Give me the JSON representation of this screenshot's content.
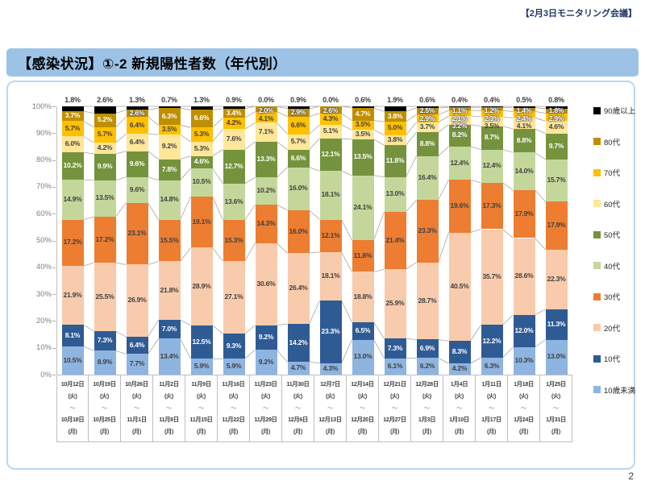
{
  "page": {
    "header_note": "【2月3日モニタリング会議】",
    "title": "【感染状況】①-2 新規陽性者数（年代別）",
    "page_number": "2"
  },
  "chart_data": {
    "type": "bar",
    "stacked": true,
    "percent_stacked": true,
    "title": "【感染状況】①-2 新規陽性者数（年代別）",
    "xlabel": "",
    "ylabel": "",
    "ylim": [
      0,
      100
    ],
    "grid": false,
    "legend_position": "right",
    "label_format": "0.0%",
    "y_ticks": [
      "0%",
      "10%",
      "20%",
      "30%",
      "40%",
      "50%",
      "60%",
      "70%",
      "80%",
      "90%",
      "100%"
    ],
    "category_separator": "～",
    "categories": [
      {
        "start": "10月12日",
        "start_dow": "(火)",
        "end": "10月18日",
        "end_dow": "(月)"
      },
      {
        "start": "10月19日",
        "start_dow": "(火)",
        "end": "10月25日",
        "end_dow": "(月)"
      },
      {
        "start": "10月26日",
        "start_dow": "(火)",
        "end": "11月1日",
        "end_dow": "(月)"
      },
      {
        "start": "11月2日",
        "start_dow": "(火)",
        "end": "11月8日",
        "end_dow": "(月)"
      },
      {
        "start": "11月9日",
        "start_dow": "(火)",
        "end": "11月15日",
        "end_dow": "(月)"
      },
      {
        "start": "11月16日",
        "start_dow": "(火)",
        "end": "11月22日",
        "end_dow": "(月)"
      },
      {
        "start": "11月23日",
        "start_dow": "(火)",
        "end": "11月29日",
        "end_dow": "(月)"
      },
      {
        "start": "11月30日",
        "start_dow": "(火)",
        "end": "12月6日",
        "end_dow": "(月)"
      },
      {
        "start": "12月7日",
        "start_dow": "(火)",
        "end": "12月13日",
        "end_dow": "(月)"
      },
      {
        "start": "12月14日",
        "start_dow": "(火)",
        "end": "12月20日",
        "end_dow": "(月)"
      },
      {
        "start": "12月21日",
        "start_dow": "(火)",
        "end": "12月27日",
        "end_dow": "(月)"
      },
      {
        "start": "12月28日",
        "start_dow": "(火)",
        "end": "1月3日",
        "end_dow": "(月)"
      },
      {
        "start": "1月4日",
        "start_dow": "(火)",
        "end": "1月10日",
        "end_dow": "(月)"
      },
      {
        "start": "1月11日",
        "start_dow": "(火)",
        "end": "1月17日",
        "end_dow": "(月)"
      },
      {
        "start": "1月18日",
        "start_dow": "(火)",
        "end": "1月24日",
        "end_dow": "(月)"
      },
      {
        "start": "1月25日",
        "start_dow": "(火)",
        "end": "1月31日",
        "end_dow": "(月)"
      }
    ],
    "series": [
      {
        "name": "10歳未満",
        "color": "#8EB4E0",
        "label_color": "#404040",
        "values": [
          10.5,
          8.9,
          7.7,
          13.4,
          5.9,
          5.9,
          9.2,
          4.7,
          4.3,
          13.0,
          6.1,
          6.2,
          4.2,
          6.3,
          10.3,
          13.0
        ]
      },
      {
        "name": "10代",
        "color": "#2F5B95",
        "label_color": "#FFFFFF",
        "values": [
          8.1,
          7.3,
          6.4,
          7.0,
          12.5,
          9.3,
          9.2,
          14.2,
          23.3,
          6.5,
          7.3,
          6.9,
          8.3,
          12.2,
          12.0,
          11.3
        ]
      },
      {
        "name": "20代",
        "color": "#F8CBAD",
        "label_color": "#404040",
        "values": [
          21.9,
          25.5,
          26.9,
          21.8,
          28.9,
          27.1,
          30.6,
          26.4,
          18.1,
          18.8,
          25.9,
          28.7,
          40.5,
          35.7,
          28.6,
          22.3
        ]
      },
      {
        "name": "30代",
        "color": "#ED7D31",
        "label_color": "#404040",
        "values": [
          17.2,
          17.2,
          23.1,
          15.5,
          19.1,
          15.3,
          14.3,
          16.0,
          12.1,
          11.8,
          21.4,
          23.3,
          19.6,
          17.3,
          17.9,
          17.9
        ]
      },
      {
        "name": "40代",
        "color": "#C4D79B",
        "label_color": "#404040",
        "values": [
          14.9,
          13.5,
          9.6,
          14.8,
          10.5,
          13.6,
          10.2,
          16.0,
          18.1,
          24.1,
          13.0,
          16.4,
          12.4,
          12.4,
          14.0,
          15.7
        ]
      },
      {
        "name": "50代",
        "color": "#75933D",
        "label_color": "#FFFFFF",
        "values": [
          10.2,
          9.9,
          9.6,
          7.8,
          4.6,
          12.7,
          13.3,
          6.6,
          12.1,
          13.5,
          11.8,
          8.8,
          8.2,
          8.7,
          8.8,
          9.7
        ]
      },
      {
        "name": "60代",
        "color": "#FFE699",
        "label_color": "#404040",
        "values": [
          6.0,
          4.2,
          6.4,
          9.2,
          5.3,
          7.6,
          7.1,
          5.7,
          5.1,
          3.5,
          3.8,
          3.7,
          3.2,
          3.5,
          4.1,
          4.6
        ]
      },
      {
        "name": "70代",
        "color": "#FFC000",
        "label_color": "#404040",
        "values": [
          5.7,
          5.7,
          6.4,
          3.5,
          5.3,
          4.2,
          4.1,
          6.6,
          4.3,
          3.5,
          5.0,
          2.9,
          2.1,
          2.3,
          2.4,
          2.9
        ]
      },
      {
        "name": "80代",
        "color": "#BF8F00",
        "label_color": "#FFFFFF",
        "values": [
          3.7,
          5.2,
          2.6,
          6.3,
          6.6,
          3.4,
          2.0,
          2.9,
          2.6,
          4.7,
          3.8,
          2.5,
          1.1,
          1.2,
          1.4,
          1.8
        ]
      },
      {
        "name": "90歳以上",
        "color": "#000000",
        "label_color": "#404040",
        "values": [
          1.8,
          2.6,
          1.3,
          0.7,
          1.3,
          0.9,
          0.0,
          0.9,
          0.0,
          0.6,
          1.9,
          0.6,
          0.4,
          0.4,
          0.5,
          0.8
        ]
      }
    ],
    "series_line_color": "#A6A6A6",
    "axis_color": "#BFBFBF",
    "tick_label_color": "#7F7F7F"
  },
  "theme": {
    "title_bar_bg": "#9CC2E5",
    "content_border": "#BDD7EE",
    "header_note_color": "#1F3864"
  }
}
